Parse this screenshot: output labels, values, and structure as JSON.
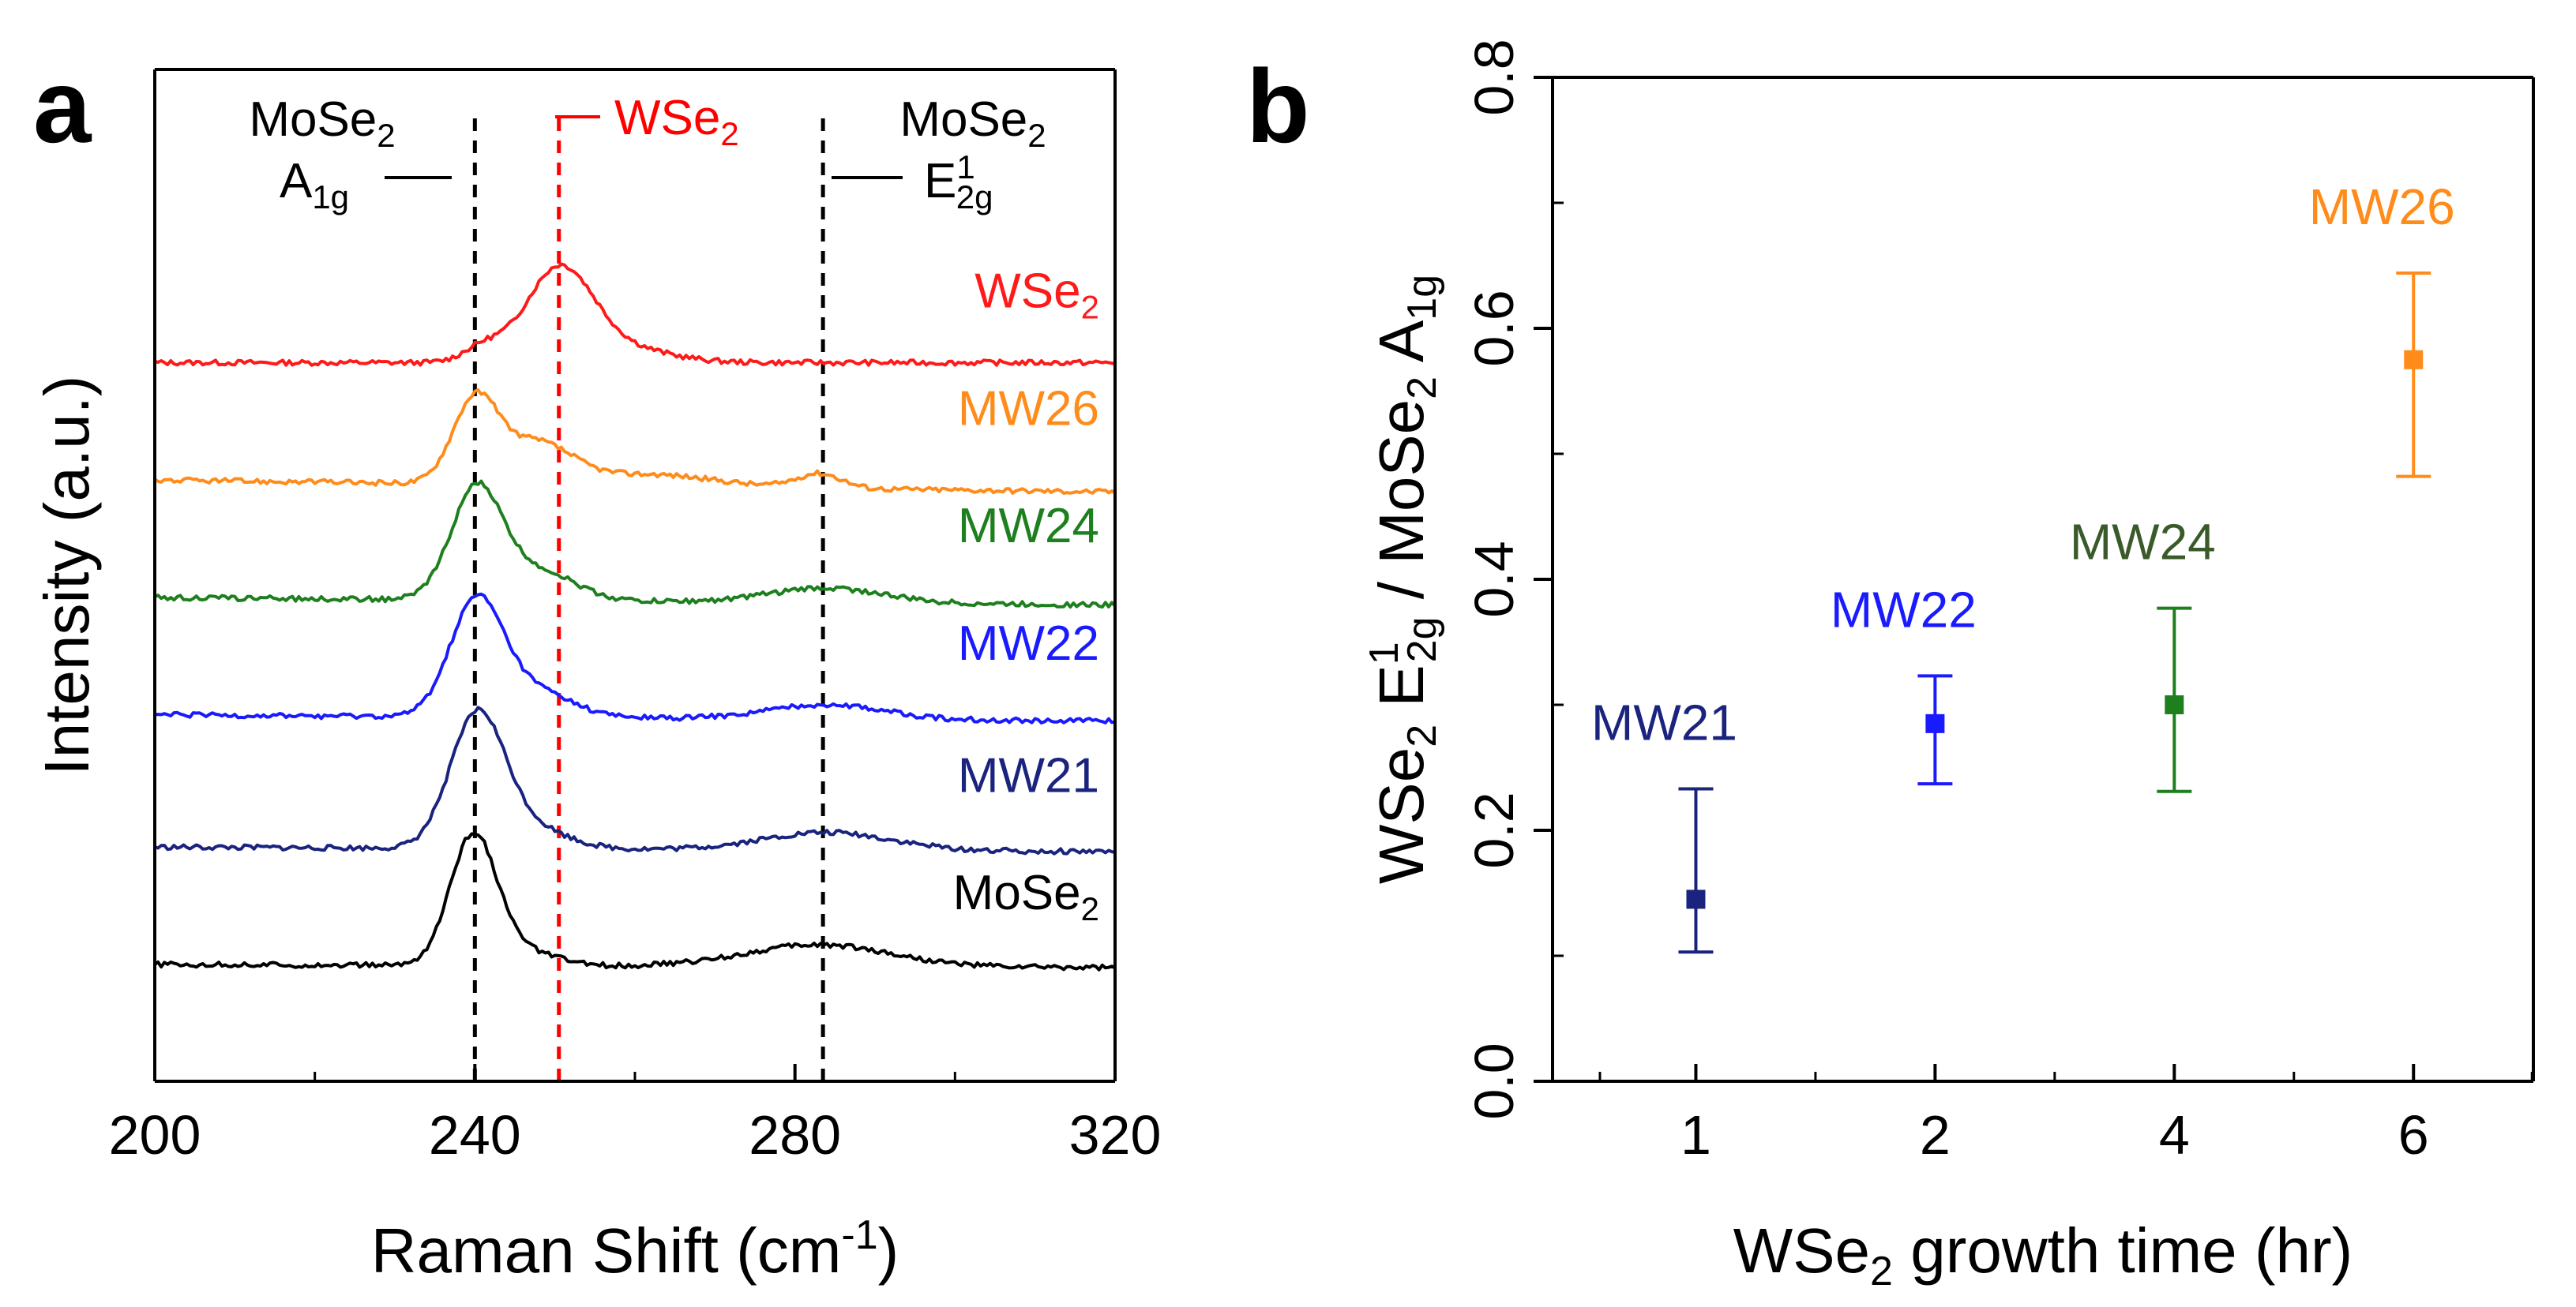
{
  "panel_labels": {
    "a": "a",
    "b": "b"
  },
  "chart_data": [
    {
      "type": "line",
      "panel": "a",
      "xlabel": "Raman Shift (cm",
      "xlabel_sup": "-1",
      "xlabel_end": ")",
      "ylabel": "Intensity (a.u.)",
      "xlim": [
        200,
        320
      ],
      "xticks": [
        "200",
        "240",
        "280",
        "320"
      ],
      "ref_lines": [
        {
          "x": 240,
          "color": "#000000",
          "style": "dashed",
          "name": "mose2-a1g-line"
        },
        {
          "x": 250.5,
          "color": "#ff0000",
          "style": "dashed",
          "name": "wse2-line"
        },
        {
          "x": 283.5,
          "color": "#000000",
          "style": "dashed",
          "name": "mose2-e2g-line"
        }
      ],
      "annotations": {
        "a1g_top": {
          "base": "MoSe",
          "sub": "2"
        },
        "a1g_bottom": {
          "base": "A",
          "sub": "1g"
        },
        "wse2": {
          "base": "WSe",
          "sub": "2"
        },
        "e2g_top": {
          "base": "MoSe",
          "sub": "2"
        },
        "e2g_bottom": {
          "base": "E",
          "sup": "1",
          "sub": "2g"
        }
      },
      "series": [
        {
          "name": "WSe2",
          "label_base": "WSe",
          "label_sub": "2",
          "color": "#ff1a1a",
          "baseline": 0.75,
          "rise": 0.0,
          "peaks": [
            {
              "c": 250.5,
              "h": 0.62,
              "w": 4.2
            },
            {
              "c": 241,
              "h": 0.1,
              "w": 2.5
            },
            {
              "c": 258,
              "h": 0.1,
              "w": 6
            }
          ]
        },
        {
          "name": "MW26",
          "label_base": "MW26",
          "color": "#ff8c1a",
          "baseline": 1.55,
          "rise": -0.08,
          "peaks": [
            {
              "c": 240,
              "h": 0.55,
              "w": 2.8
            },
            {
              "c": 247.5,
              "h": 0.28,
              "w": 4.5
            },
            {
              "c": 283,
              "h": 0.1,
              "w": 2.8
            },
            {
              "c": 262,
              "h": 0.08,
              "w": 8
            }
          ]
        },
        {
          "name": "MW24",
          "label_base": "MW24",
          "color": "#1e7f1e",
          "baseline": 2.35,
          "rise": -0.05,
          "peaks": [
            {
              "c": 240.2,
              "h": 0.75,
              "w": 3.2
            },
            {
              "c": 248,
              "h": 0.2,
              "w": 4.5
            },
            {
              "c": 284,
              "h": 0.1,
              "w": 7
            }
          ]
        },
        {
          "name": "MW22",
          "label_base": "MW22",
          "color": "#1a1aff",
          "baseline": 3.15,
          "rise": -0.04,
          "peaks": [
            {
              "c": 240.2,
              "h": 0.78,
              "w": 3.3
            },
            {
              "c": 247.5,
              "h": 0.18,
              "w": 4.5
            },
            {
              "c": 284,
              "h": 0.1,
              "w": 7
            }
          ]
        },
        {
          "name": "MW21",
          "label_base": "MW21",
          "color": "#1a237e",
          "baseline": 4.05,
          "rise": -0.03,
          "peaks": [
            {
              "c": 240.3,
              "h": 0.9,
              "w": 3.4
            },
            {
              "c": 247,
              "h": 0.14,
              "w": 4.5
            },
            {
              "c": 284,
              "h": 0.12,
              "w": 8
            }
          ]
        },
        {
          "name": "MoSe2",
          "label_base": "MoSe",
          "label_sub": "2",
          "color": "#000000",
          "baseline": 4.85,
          "rise": -0.02,
          "peaks": [
            {
              "c": 239.8,
              "h": 0.88,
              "w": 2.9
            },
            {
              "c": 246,
              "h": 0.1,
              "w": 4
            },
            {
              "c": 283,
              "h": 0.15,
              "w": 9
            }
          ]
        }
      ]
    },
    {
      "type": "scatter",
      "panel": "b",
      "xlabel_base": "WSe",
      "xlabel_sub": "2",
      "xlabel_end": " growth time (hr)",
      "ylabel_parts": [
        {
          "t": "WSe"
        },
        {
          "t": "2",
          "kind": "sub"
        },
        {
          "t": " E"
        },
        {
          "t": "1",
          "kind": "sup"
        },
        {
          "t": "2g",
          "kind": "sub"
        },
        {
          "t": " / MoSe"
        },
        {
          "t": "2",
          "kind": "sub"
        },
        {
          "t": " A"
        },
        {
          "t": "1g",
          "kind": "sub"
        }
      ],
      "x_categories": [
        "1",
        "2",
        "4",
        "6"
      ],
      "ylim": [
        0.0,
        0.8
      ],
      "yticks": [
        "0.0",
        "0.2",
        "0.4",
        "0.6",
        "0.8"
      ],
      "points": [
        {
          "label": "MW21",
          "x": "1",
          "y": 0.145,
          "err_low": 0.103,
          "err_high": 0.233,
          "color": "#1a237e"
        },
        {
          "label": "MW22",
          "x": "2",
          "y": 0.285,
          "err_low": 0.237,
          "err_high": 0.323,
          "color": "#1a1aff"
        },
        {
          "label": "MW24",
          "x": "4",
          "y": 0.3,
          "err_low": 0.231,
          "err_high": 0.377,
          "color": "#1e7f1e",
          "label_color": "#3a5a2a"
        },
        {
          "label": "MW26",
          "x": "6",
          "y": 0.575,
          "err_low": 0.482,
          "err_high": 0.644,
          "color": "#ff8c1a"
        }
      ]
    }
  ]
}
